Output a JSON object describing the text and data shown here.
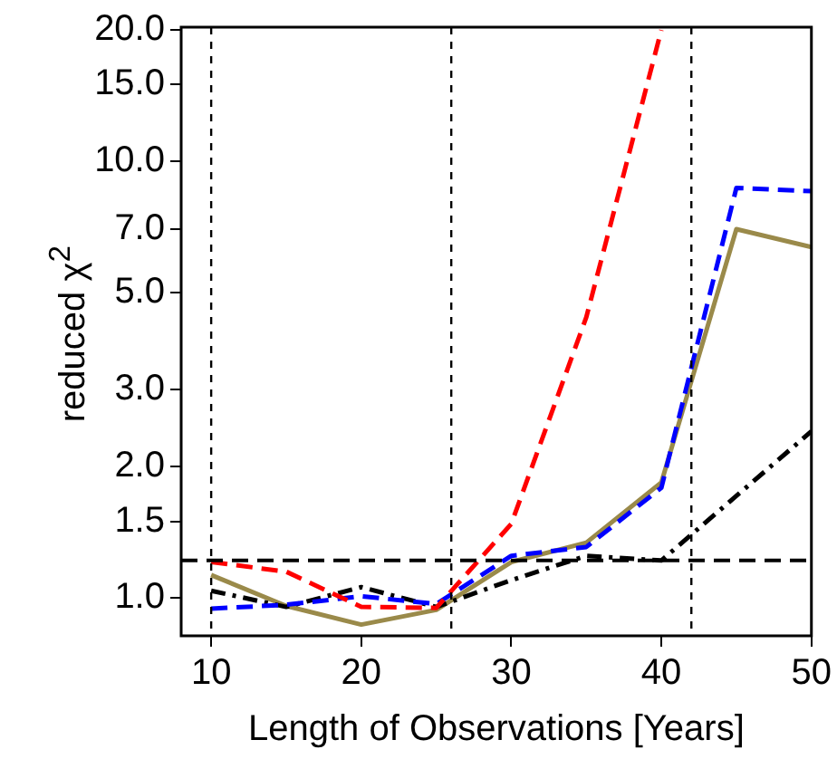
{
  "chart_data": {
    "type": "line",
    "xlabel": "Length of Observations [Years]",
    "ylabel": "reduced χ$^{2}$",
    "log": "y",
    "grid": false,
    "legend": false,
    "marker": "none",
    "x": [
      10,
      15,
      20,
      25,
      30,
      35,
      40,
      45,
      50
    ],
    "xlim": [
      8,
      50
    ],
    "xticks": [
      10,
      20,
      30,
      40,
      50
    ],
    "ylim": [
      0.82,
      20.3
    ],
    "yticks": [
      {
        "value": 1,
        "label": "1.0"
      },
      {
        "value": 1.5,
        "label": "1.5"
      },
      {
        "value": 2,
        "label": "2.0"
      },
      {
        "value": 3,
        "label": "3.0"
      },
      {
        "value": 5,
        "label": "5.0"
      },
      {
        "value": 7,
        "label": "7.0"
      },
      {
        "value": 10,
        "label": "10.0"
      },
      {
        "value": 15,
        "label": "15.0"
      },
      {
        "value": 20,
        "label": "20.0"
      }
    ],
    "series": [
      {
        "color": "#ff0000",
        "line_style": "dashed",
        "x": [
          10,
          15,
          20,
          25,
          30,
          35,
          40
        ],
        "values": [
          1.21,
          1.15,
          0.955,
          0.95,
          1.48,
          4.4,
          20
        ]
      },
      {
        "color": "#0000ff",
        "line_style": "dashed",
        "values": [
          0.946,
          0.966,
          1.01,
          0.97,
          1.25,
          1.31,
          1.79,
          8.7,
          8.55
        ]
      },
      {
        "color": "#000000",
        "line_style": "dashdot",
        "x": [
          10,
          15,
          20,
          25,
          30,
          35,
          40,
          50
        ],
        "values": [
          1.04,
          0.955,
          1.06,
          0.955,
          1.1,
          1.25,
          1.22,
          2.41
        ]
      },
      {
        "color": "#9a8a4a",
        "line_style": "solid",
        "values": [
          1.13,
          0.96,
          0.87,
          0.94,
          1.21,
          1.34,
          1.84,
          7.0,
          6.37
        ]
      }
    ],
    "ref_lines": [
      {
        "axis": "y",
        "value": 1.22,
        "color": "#000000",
        "line_style": "dashed"
      },
      {
        "axis": "x",
        "value": 10,
        "color": "#000000",
        "line_style": "dotted"
      },
      {
        "axis": "x",
        "value": 26,
        "color": "#000000",
        "line_style": "dotted"
      },
      {
        "axis": "x",
        "value": 42,
        "color": "#000000",
        "line_style": "dotted"
      }
    ]
  }
}
